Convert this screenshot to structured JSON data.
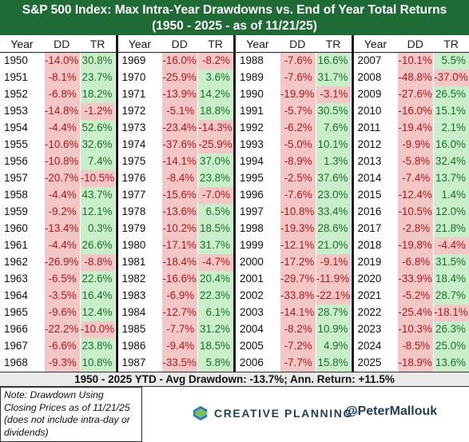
{
  "title": {
    "line1": "S&P 500 Index: Max Intra-Year Drawdowns vs. End of Year Total Returns",
    "line2": "(1950 - 2025 - as of 11/21/25)"
  },
  "columns": {
    "year": "Year",
    "dd": "DD",
    "tr": "TR"
  },
  "chart_data": {
    "type": "table",
    "groups": [
      {
        "rows": [
          {
            "year": "1950",
            "dd": "-14.0%",
            "tr": "30.8%"
          },
          {
            "year": "1951",
            "dd": "-8.1%",
            "tr": "23.7%"
          },
          {
            "year": "1952",
            "dd": "-6.8%",
            "tr": "18.2%"
          },
          {
            "year": "1953",
            "dd": "-14.8%",
            "tr": "-1.2%"
          },
          {
            "year": "1954",
            "dd": "-4.4%",
            "tr": "52.6%"
          },
          {
            "year": "1955",
            "dd": "-10.6%",
            "tr": "32.6%"
          },
          {
            "year": "1956",
            "dd": "-10.8%",
            "tr": "7.4%"
          },
          {
            "year": "1957",
            "dd": "-20.7%",
            "tr": "-10.5%"
          },
          {
            "year": "1958",
            "dd": "-4.4%",
            "tr": "43.7%"
          },
          {
            "year": "1959",
            "dd": "-9.2%",
            "tr": "12.1%"
          },
          {
            "year": "1960",
            "dd": "-13.4%",
            "tr": "0.3%"
          },
          {
            "year": "1961",
            "dd": "-4.4%",
            "tr": "26.6%"
          },
          {
            "year": "1962",
            "dd": "-26.9%",
            "tr": "-8.8%"
          },
          {
            "year": "1963",
            "dd": "-6.5%",
            "tr": "22.6%"
          },
          {
            "year": "1964",
            "dd": "-3.5%",
            "tr": "16.4%"
          },
          {
            "year": "1965",
            "dd": "-9.6%",
            "tr": "12.4%"
          },
          {
            "year": "1966",
            "dd": "-22.2%",
            "tr": "-10.0%"
          },
          {
            "year": "1967",
            "dd": "-6.6%",
            "tr": "23.8%"
          },
          {
            "year": "1968",
            "dd": "-9.3%",
            "tr": "10.8%"
          }
        ]
      },
      {
        "rows": [
          {
            "year": "1969",
            "dd": "-16.0%",
            "tr": "-8.2%"
          },
          {
            "year": "1970",
            "dd": "-25.9%",
            "tr": "3.6%"
          },
          {
            "year": "1971",
            "dd": "-13.9%",
            "tr": "14.2%"
          },
          {
            "year": "1972",
            "dd": "-5.1%",
            "tr": "18.8%"
          },
          {
            "year": "1973",
            "dd": "-23.4%",
            "tr": "-14.3%"
          },
          {
            "year": "1974",
            "dd": "-37.6%",
            "tr": "-25.9%"
          },
          {
            "year": "1975",
            "dd": "-14.1%",
            "tr": "37.0%"
          },
          {
            "year": "1976",
            "dd": "-8.4%",
            "tr": "23.8%"
          },
          {
            "year": "1977",
            "dd": "-15.6%",
            "tr": "-7.0%"
          },
          {
            "year": "1978",
            "dd": "-13.6%",
            "tr": "6.5%"
          },
          {
            "year": "1979",
            "dd": "-10.2%",
            "tr": "18.5%"
          },
          {
            "year": "1980",
            "dd": "-17.1%",
            "tr": "31.7%"
          },
          {
            "year": "1981",
            "dd": "-18.4%",
            "tr": "-4.7%"
          },
          {
            "year": "1982",
            "dd": "-16.6%",
            "tr": "20.4%"
          },
          {
            "year": "1983",
            "dd": "-6.9%",
            "tr": "22.3%"
          },
          {
            "year": "1984",
            "dd": "-12.7%",
            "tr": "6.1%"
          },
          {
            "year": "1985",
            "dd": "-7.7%",
            "tr": "31.2%"
          },
          {
            "year": "1986",
            "dd": "-9.4%",
            "tr": "18.5%"
          },
          {
            "year": "1987",
            "dd": "-33.5%",
            "tr": "5.8%"
          }
        ]
      },
      {
        "rows": [
          {
            "year": "1988",
            "dd": "-7.6%",
            "tr": "16.6%"
          },
          {
            "year": "1989",
            "dd": "-7.6%",
            "tr": "31.7%"
          },
          {
            "year": "1990",
            "dd": "-19.9%",
            "tr": "-3.1%"
          },
          {
            "year": "1991",
            "dd": "-5.7%",
            "tr": "30.5%"
          },
          {
            "year": "1992",
            "dd": "-6.2%",
            "tr": "7.6%"
          },
          {
            "year": "1993",
            "dd": "-5.0%",
            "tr": "10.1%"
          },
          {
            "year": "1994",
            "dd": "-8.9%",
            "tr": "1.3%"
          },
          {
            "year": "1995",
            "dd": "-2.5%",
            "tr": "37.6%"
          },
          {
            "year": "1996",
            "dd": "-7.6%",
            "tr": "23.0%"
          },
          {
            "year": "1997",
            "dd": "-10.8%",
            "tr": "33.4%"
          },
          {
            "year": "1998",
            "dd": "-19.3%",
            "tr": "28.6%"
          },
          {
            "year": "1999",
            "dd": "-12.1%",
            "tr": "21.0%"
          },
          {
            "year": "2000",
            "dd": "-17.2%",
            "tr": "-9.1%"
          },
          {
            "year": "2001",
            "dd": "-29.7%",
            "tr": "-11.9%"
          },
          {
            "year": "2002",
            "dd": "-33.8%",
            "tr": "-22.1%"
          },
          {
            "year": "2003",
            "dd": "-14.1%",
            "tr": "28.7%"
          },
          {
            "year": "2004",
            "dd": "-8.2%",
            "tr": "10.9%"
          },
          {
            "year": "2005",
            "dd": "-7.2%",
            "tr": "4.9%"
          },
          {
            "year": "2006",
            "dd": "-7.7%",
            "tr": "15.8%"
          }
        ]
      },
      {
        "rows": [
          {
            "year": "2007",
            "dd": "-10.1%",
            "tr": "5.5%"
          },
          {
            "year": "2008",
            "dd": "-48.8%",
            "tr": "-37.0%"
          },
          {
            "year": "2009",
            "dd": "-27.6%",
            "tr": "26.5%"
          },
          {
            "year": "2010",
            "dd": "-16.0%",
            "tr": "15.1%"
          },
          {
            "year": "2011",
            "dd": "-19.4%",
            "tr": "2.1%"
          },
          {
            "year": "2012",
            "dd": "-9.9%",
            "tr": "16.0%"
          },
          {
            "year": "2013",
            "dd": "-5.8%",
            "tr": "32.4%"
          },
          {
            "year": "2014",
            "dd": "-7.4%",
            "tr": "13.7%"
          },
          {
            "year": "2015",
            "dd": "-12.4%",
            "tr": "1.4%"
          },
          {
            "year": "2016",
            "dd": "-10.5%",
            "tr": "12.0%"
          },
          {
            "year": "2017",
            "dd": "-2.8%",
            "tr": "21.8%"
          },
          {
            "year": "2018",
            "dd": "-19.8%",
            "tr": "-4.4%"
          },
          {
            "year": "2019",
            "dd": "-6.8%",
            "tr": "31.5%"
          },
          {
            "year": "2020",
            "dd": "-33.9%",
            "tr": "18.4%"
          },
          {
            "year": "2021",
            "dd": "-5.2%",
            "tr": "28.7%"
          },
          {
            "year": "2022",
            "dd": "-25.4%",
            "tr": "-18.1%"
          },
          {
            "year": "2023",
            "dd": "-10.3%",
            "tr": "26.3%"
          },
          {
            "year": "2024",
            "dd": "-8.5%",
            "tr": "25.0%"
          },
          {
            "year": "2025",
            "dd": "-18.9%",
            "tr": "13.6%"
          }
        ]
      }
    ]
  },
  "summary": "1950 - 2025 YTD - Avg Drawdown: -13.7%; Ann. Return: +11.5%",
  "note": "Note: Drawdown Using Closing Prices as of 11/21/25 (does not include intra-day or dividends)",
  "brand": {
    "name": "CREATIVE PLANNING",
    "trademark": "®",
    "handle": "@PeterMallouk",
    "logo_icon": "creative-planning-logo-icon"
  },
  "colors": {
    "title_bg": "#1f6b35",
    "negative_bg": "#f4c7c7",
    "negative_text": "#b01818",
    "positive_bg": "#c9efca",
    "positive_text": "#1b6e2a"
  }
}
